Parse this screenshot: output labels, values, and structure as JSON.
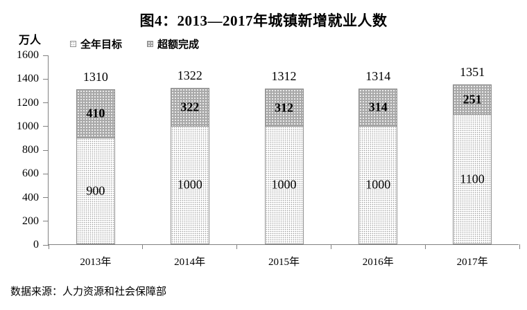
{
  "title": "图4：2013—2017年城镇新增就业人数",
  "source": "数据来源：人力资源和社会保障部",
  "colors": {
    "target_fill": "#ffffff",
    "target_dot": "#9a9a9a",
    "over_fill": "#a9a9a9",
    "over_dot": "#ffffff",
    "axis": "#808080",
    "text": "#000000"
  },
  "chart_data": {
    "type": "bar",
    "stacked": true,
    "title": "图4：2013—2017年城镇新增就业人数",
    "y_unit": "万人",
    "xlabel": "",
    "ylabel": "万人",
    "categories": [
      "2013年",
      "2014年",
      "2015年",
      "2016年",
      "2017年"
    ],
    "series": [
      {
        "name": "全年目标",
        "values": [
          900,
          1000,
          1000,
          1000,
          1100
        ]
      },
      {
        "name": "超额完成",
        "values": [
          410,
          322,
          312,
          314,
          251
        ]
      }
    ],
    "totals": [
      1310,
      1322,
      1312,
      1314,
      1351
    ],
    "ylim": [
      0,
      1600
    ],
    "y_ticks": [
      0,
      200,
      400,
      600,
      800,
      1000,
      1200,
      1400,
      1600
    ],
    "legend_position": "top-left",
    "grid": false
  }
}
